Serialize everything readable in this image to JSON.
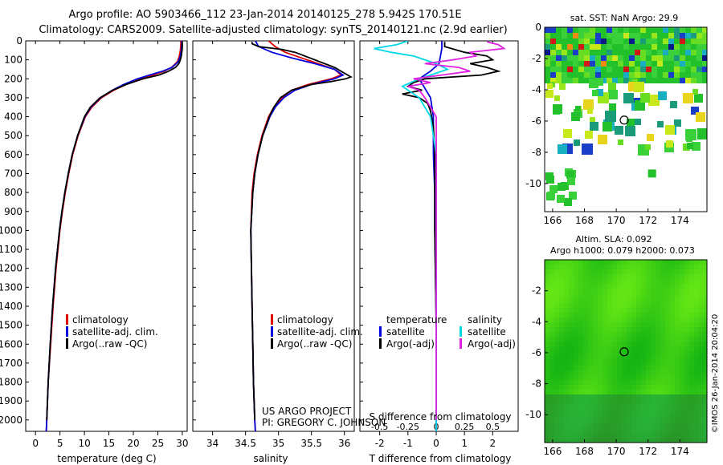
{
  "title": {
    "line1": "Argo profile: AO 5903466_112 23-Jan-2014 20140125_278 5.942S 170.51E",
    "line2": "Climatology: CARS2009. Satellite-adjusted climatology: synTS_20140121.nc (2.9d earlier)"
  },
  "chart_data": [
    {
      "type": "line",
      "name": "temperature-profile",
      "xlabel": "temperature (deg C)",
      "ylabel": "",
      "xlim": [
        -2,
        31
      ],
      "ylim": [
        2060,
        0
      ],
      "xticks": [
        0,
        5,
        10,
        15,
        20,
        25,
        30
      ],
      "xtick_labels": [
        "0",
        "5",
        "10",
        "15",
        "20",
        "25",
        "30"
      ],
      "yticks": [
        0,
        100,
        200,
        300,
        400,
        500,
        600,
        700,
        800,
        900,
        1000,
        1100,
        1200,
        1300,
        1400,
        1500,
        1600,
        1700,
        1800,
        1900,
        2000
      ],
      "ytick_labels": [
        "0",
        "100",
        "200",
        "300",
        "400",
        "500",
        "600",
        "700",
        "800",
        "900",
        "1000",
        "1100",
        "1200",
        "1300",
        "1400",
        "1500",
        "1600",
        "1700",
        "1800",
        "1900",
        "2000"
      ],
      "legend": [
        "climatology",
        "satellite-adj. clim.",
        "Argo(..raw -QC)"
      ],
      "series": [
        {
          "name": "climatology",
          "color": "#e00000",
          "depth": [
            0,
            20,
            50,
            80,
            110,
            140,
            160,
            180,
            200,
            230,
            260,
            300,
            350,
            400,
            500,
            600,
            700,
            800,
            900,
            1000,
            1200,
            1400,
            1600,
            1800,
            2000,
            2060
          ],
          "values": [
            29.7,
            29.7,
            29.6,
            29.4,
            29.0,
            27.8,
            26.3,
            24.0,
            21.5,
            18.5,
            16.0,
            13.5,
            11.5,
            10.2,
            8.7,
            7.6,
            6.8,
            6.1,
            5.5,
            5.0,
            4.2,
            3.6,
            3.1,
            2.6,
            2.3,
            2.2
          ]
        },
        {
          "name": "satellite-adj. clim.",
          "color": "#0000e0",
          "depth": [
            0,
            20,
            50,
            80,
            110,
            140,
            160,
            180,
            200,
            230,
            260,
            300,
            350,
            400,
            500,
            600,
            700,
            800,
            900,
            1000,
            1200,
            1400,
            1600,
            1800,
            2000,
            2060
          ],
          "values": [
            29.9,
            29.9,
            29.8,
            29.6,
            29.2,
            27.9,
            26.0,
            23.3,
            20.8,
            18.0,
            15.7,
            13.3,
            11.3,
            10.1,
            8.6,
            7.5,
            6.7,
            6.0,
            5.4,
            4.9,
            4.1,
            3.5,
            3.0,
            2.6,
            2.3,
            2.2
          ]
        },
        {
          "name": "Argo(..raw -QC)",
          "color": "#000000",
          "depth": [
            5,
            20,
            40,
            60,
            80,
            100,
            120,
            140,
            160,
            180,
            200,
            230,
            260,
            300,
            350,
            400,
            500,
            600,
            700,
            800,
            900,
            1000,
            1200,
            1400,
            1600,
            1800,
            2000
          ],
          "values": [
            30.0,
            30.0,
            30.0,
            29.9,
            29.8,
            29.6,
            29.3,
            28.6,
            27.2,
            25.2,
            22.0,
            18.5,
            15.8,
            13.2,
            11.2,
            10.0,
            8.6,
            7.5,
            6.7,
            6.0,
            5.4,
            4.9,
            4.1,
            3.5,
            3.0,
            2.6,
            2.3
          ]
        }
      ]
    },
    {
      "type": "line",
      "name": "salinity-profile",
      "xlabel": "salinity",
      "xlim": [
        33.7,
        36.15
      ],
      "ylim": [
        2060,
        0
      ],
      "xticks": [
        34,
        34.5,
        35,
        35.5,
        36
      ],
      "xtick_labels": [
        "34",
        "34.5",
        "35",
        "35.5",
        "36"
      ],
      "legend": [
        "climatology",
        "satellite-adj. clim.",
        "Argo(..raw -QC)"
      ],
      "series": [
        {
          "name": "climatology",
          "color": "#e00000",
          "depth": [
            0,
            30,
            60,
            90,
            120,
            150,
            180,
            200,
            230,
            260,
            300,
            350,
            400,
            500,
            600,
            700,
            800,
            1000,
            1200,
            1400,
            1600,
            1800,
            2000,
            2060
          ],
          "values": [
            34.85,
            34.95,
            35.1,
            35.35,
            35.6,
            35.85,
            35.95,
            35.8,
            35.45,
            35.2,
            35.05,
            34.93,
            34.85,
            34.75,
            34.68,
            34.63,
            34.6,
            34.58,
            34.59,
            34.6,
            34.61,
            34.62,
            34.64,
            34.65
          ]
        },
        {
          "name": "satellite-adj. clim.",
          "color": "#0000e0",
          "depth": [
            0,
            30,
            60,
            90,
            120,
            150,
            180,
            200,
            230,
            260,
            300,
            350,
            400,
            500,
            600,
            700,
            800,
            1000,
            1200,
            1400,
            1600,
            1800,
            2000,
            2060
          ],
          "values": [
            34.65,
            34.7,
            34.9,
            35.2,
            35.55,
            35.85,
            35.98,
            35.85,
            35.5,
            35.25,
            35.08,
            34.95,
            34.87,
            34.76,
            34.69,
            34.64,
            34.61,
            34.58,
            34.59,
            34.6,
            34.61,
            34.62,
            34.64,
            34.65
          ]
        },
        {
          "name": "Argo(..raw -QC)",
          "color": "#000000",
          "depth": [
            5,
            15,
            30,
            45,
            60,
            80,
            100,
            120,
            140,
            160,
            180,
            190,
            200,
            215,
            230,
            260,
            300,
            350,
            400,
            500,
            600,
            700,
            800,
            1000,
            1200,
            1400,
            1600,
            1800,
            2000
          ],
          "values": [
            34.6,
            34.6,
            34.7,
            35.05,
            35.25,
            35.4,
            35.55,
            35.7,
            35.85,
            35.95,
            36.05,
            36.1,
            36.02,
            35.8,
            35.5,
            35.2,
            35.03,
            34.93,
            34.86,
            34.76,
            34.69,
            34.64,
            34.61,
            34.58,
            34.59,
            34.6,
            34.61,
            34.62,
            34.64
          ]
        }
      ]
    },
    {
      "type": "line",
      "name": "difference-profile",
      "xlabel": "T difference from climatology",
      "xlabel_top": "S difference from climatology",
      "xlim": [
        -2.7,
        2.9
      ],
      "ylim": [
        2060,
        0
      ],
      "xticks": [
        -2,
        -1,
        0,
        1,
        2
      ],
      "xtick_labels": [
        "-2",
        "-1",
        "0",
        "1",
        "2"
      ],
      "sticks": [
        -0.5,
        -0.25,
        0,
        0.25,
        0.5
      ],
      "stick_labels": [
        "-0.5",
        "-0.25",
        "0",
        "0.25",
        "0.5"
      ],
      "legend_temperature": [
        "temperature",
        "satellite",
        "Argo(-adj)"
      ],
      "legend_salinity": [
        "salinity",
        "satellite",
        "Argo(-adj)"
      ],
      "series": [
        {
          "name": "temperature satellite",
          "color": "#0000e0",
          "depth": [
            0,
            40,
            80,
            120,
            160,
            200,
            250,
            300,
            400,
            600,
            800,
            1000,
            1500,
            2060
          ],
          "values": [
            0.2,
            0.2,
            0.15,
            0.1,
            -0.2,
            -0.6,
            -0.4,
            -0.2,
            -0.1,
            -0.1,
            -0.05,
            -0.05,
            0,
            0
          ]
        },
        {
          "name": "temperature Argo(-adj)",
          "color": "#000000",
          "depth": [
            5,
            30,
            60,
            80,
            100,
            120,
            140,
            160,
            180,
            200,
            220,
            240,
            260,
            280,
            300,
            330,
            370,
            450,
            600,
            800,
            1000,
            1500,
            2000
          ],
          "values": [
            0.3,
            0.3,
            1.0,
            1.8,
            2.0,
            1.2,
            1.8,
            2.2,
            1.6,
            -0.4,
            -0.8,
            -1.0,
            -0.5,
            -1.2,
            -0.6,
            -0.3,
            -0.2,
            -0.1,
            -0.05,
            -0.05,
            -0.05,
            0,
            0
          ]
        },
        {
          "name": "salinity satellite",
          "color": "#00d8e8",
          "depth": [
            0,
            20,
            40,
            60,
            80,
            100,
            120,
            150,
            180,
            200,
            240,
            300,
            400,
            600,
            1000,
            1500,
            2060
          ],
          "values": [
            -0.25,
            -0.35,
            -0.55,
            -0.4,
            -0.2,
            -0.1,
            0.0,
            0.1,
            -0.05,
            -0.15,
            -0.3,
            -0.15,
            -0.05,
            0,
            0,
            0,
            0
          ]
        },
        {
          "name": "salinity Argo(-adj)",
          "color": "#e020e0",
          "depth": [
            5,
            20,
            40,
            60,
            80,
            100,
            120,
            140,
            160,
            180,
            200,
            220,
            240,
            260,
            300,
            350,
            400,
            600,
            1000,
            1500,
            2000
          ],
          "values": [
            0.45,
            0.55,
            0.6,
            0.3,
            0.35,
            0.15,
            -0.1,
            0.2,
            0.3,
            0.05,
            -0.2,
            -0.05,
            -0.25,
            -0.15,
            -0.1,
            -0.05,
            0,
            0,
            0,
            0,
            0
          ]
        }
      ]
    },
    {
      "type": "heatmap",
      "name": "sst-map",
      "title": "sat. SST: NaN Argo: 29.9",
      "xlim": [
        165.5,
        175.7
      ],
      "ylim": [
        -11.8,
        0
      ],
      "xticks": [
        166,
        168,
        170,
        172,
        174
      ],
      "xtick_labels": [
        "166",
        "168",
        "170",
        "172",
        "174"
      ],
      "yticks": [
        0,
        -2,
        -4,
        -6,
        -8,
        -10
      ],
      "ytick_labels": [
        "0",
        "-2",
        "-4",
        "-6",
        "-8",
        "-10"
      ],
      "float_position": [
        170.5,
        -5.94
      ]
    },
    {
      "type": "heatmap",
      "name": "sla-map",
      "title_line1": "Altim. SLA: 0.092",
      "title_line2": "Argo h1000: 0.079 h2000: 0.073",
      "xlim": [
        165.5,
        175.7
      ],
      "ylim": [
        -11.8,
        0
      ],
      "xticks": [
        166,
        168,
        170,
        172,
        174
      ],
      "xtick_labels": [
        "166",
        "168",
        "170",
        "172",
        "174"
      ],
      "yticks": [
        -2,
        -4,
        -6,
        -8,
        -10
      ],
      "ytick_labels": [
        "-2",
        "-4",
        "-6",
        "-8",
        "-10"
      ],
      "float_position": [
        170.5,
        -5.94
      ]
    }
  ],
  "footer": {
    "project_line1": "US ARGO PROJECT",
    "project_line2": "PI: GREGORY C. JOHNSON",
    "stamp": "©IMOS 26-Jan-2014 20:04:20"
  }
}
